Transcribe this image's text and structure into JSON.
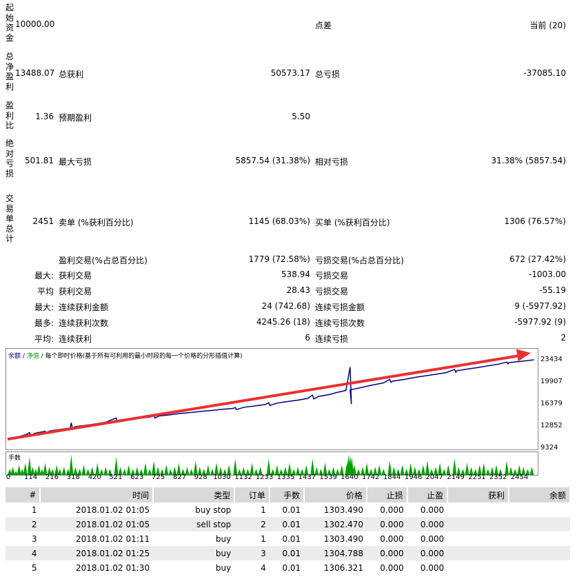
{
  "summary": {
    "initial_deposit_label": "起始资金",
    "initial_deposit_value": "10000.00",
    "spread_label": "点差",
    "spread_value": "当前 (20)",
    "net_profit_label": "总净盈利",
    "net_profit_value": "13488.07",
    "gross_profit_label": "总获利",
    "gross_profit_value": "50573.17",
    "gross_loss_label": "总亏损",
    "gross_loss_value": "-37085.10",
    "profit_factor_label": "盈利比",
    "profit_factor_value": "1.36",
    "expected_payoff_label": "预期盈利",
    "expected_payoff_value": "5.50",
    "absolute_drawdown_label": "绝对亏损",
    "absolute_drawdown_value": "501.81",
    "max_drawdown_label": "最大亏损",
    "max_drawdown_value": "5857.54 (31.38%)",
    "relative_drawdown_label": "相对亏损",
    "relative_drawdown_value": "31.38% (5857.54)",
    "total_trades_label": "交易单总计",
    "total_trades_value": "2451",
    "short_label": "卖单 (%获利百分比)",
    "short_value": "1145 (68.03%)",
    "long_label": "买单 (%获利百分比)",
    "long_value": "1306 (76.57%)",
    "profit_trades_label": "盈利交易(%占总百分比)",
    "profit_trades_value": "1779 (72.58%)",
    "loss_trades_label": "亏损交易(%占总百分比)",
    "loss_trades_value": "672 (27.42%)",
    "largest_prefix": "最大:",
    "largest_profit_label": "获利交易",
    "largest_profit_value": "538.94",
    "largest_loss_label": "亏损交易",
    "largest_loss_value": "-1003.00",
    "average_prefix": "平均",
    "average_profit_label": "获利交易",
    "average_profit_value": "28.43",
    "average_loss_label": "亏损交易",
    "average_loss_value": "-55.19",
    "max_consec_prefix": "最大:",
    "max_consec_wins_label": "连续获利金额",
    "max_consec_wins_value": "24 (742.68)",
    "max_consec_losses_label": "连续亏损金额",
    "max_consec_losses_value": "9 (-5977.92)",
    "maximal_prefix": "最多:",
    "maximal_wins_label": "连续获利次数",
    "maximal_wins_value": "4245.26 (18)",
    "maximal_losses_label": "连续亏损次数",
    "maximal_losses_value": "-5977.92 (9)",
    "avg_consec_prefix": "平均:",
    "avg_consec_wins_label": "连续获利",
    "avg_consec_wins_value": "6",
    "avg_consec_losses_label": "连续亏损",
    "avg_consec_losses_value": "2"
  },
  "chart_data": {
    "type": "line",
    "legend_balance": "余额",
    "legend_sep1": " / ",
    "legend_equity": "净值",
    "legend_sep2": " / ",
    "legend_desc": "每个即时价格(基于所有可利用的最小时段的每一个价格的分形插值计算)",
    "volume_label": "手数",
    "yticks": [
      "23434",
      "19907",
      "16379",
      "12852",
      "9324"
    ],
    "ylim": [
      9324,
      23434
    ],
    "xticks": [
      "0",
      "114",
      "216",
      "318",
      "420",
      "521",
      "623",
      "725",
      "827",
      "928",
      "1030",
      "1132",
      "1233",
      "1335",
      "1437",
      "1539",
      "1640",
      "1742",
      "1844",
      "1946",
      "2047",
      "2149",
      "2251",
      "2352",
      "2454"
    ],
    "xlim": [
      0,
      2525
    ],
    "balance": [
      [
        0,
        10000
      ],
      [
        60,
        10400
      ],
      [
        90,
        10700
      ],
      [
        130,
        10900
      ],
      [
        160,
        11100
      ],
      [
        200,
        11300
      ],
      [
        260,
        11600
      ],
      [
        300,
        11800
      ],
      [
        320,
        12000
      ],
      [
        380,
        12300
      ],
      [
        420,
        12500
      ],
      [
        470,
        12800
      ],
      [
        520,
        13000
      ],
      [
        560,
        13200
      ],
      [
        620,
        13450
      ],
      [
        680,
        13650
      ],
      [
        725,
        13850
      ],
      [
        780,
        14050
      ],
      [
        827,
        14300
      ],
      [
        880,
        14450
      ],
      [
        928,
        14650
      ],
      [
        980,
        14800
      ],
      [
        1030,
        15000
      ],
      [
        1080,
        15150
      ],
      [
        1132,
        15350
      ],
      [
        1180,
        15550
      ],
      [
        1233,
        15800
      ],
      [
        1290,
        16050
      ],
      [
        1335,
        16300
      ],
      [
        1390,
        16550
      ],
      [
        1437,
        16850
      ],
      [
        1490,
        17200
      ],
      [
        1539,
        17500
      ],
      [
        1580,
        17900
      ],
      [
        1620,
        18200
      ],
      [
        1640,
        18300
      ],
      [
        1680,
        18600
      ],
      [
        1742,
        19100
      ],
      [
        1800,
        19500
      ],
      [
        1844,
        19800
      ],
      [
        1900,
        20100
      ],
      [
        1946,
        20400
      ],
      [
        2000,
        20700
      ],
      [
        2047,
        20950
      ],
      [
        2100,
        21250
      ],
      [
        2149,
        21550
      ],
      [
        2200,
        21850
      ],
      [
        2251,
        22100
      ],
      [
        2300,
        22400
      ],
      [
        2352,
        22700
      ],
      [
        2400,
        22950
      ],
      [
        2454,
        23150
      ],
      [
        2520,
        23434
      ]
    ],
    "equity_spikes": [
      [
        105,
        10550,
        11000
      ],
      [
        180,
        10900,
        11250
      ],
      [
        305,
        11600,
        12700
      ],
      [
        520,
        12750,
        13500
      ],
      [
        700,
        13500,
        13850
      ],
      [
        1090,
        14950,
        15300
      ],
      [
        1250,
        15650,
        16100
      ],
      [
        1460,
        16750,
        17400
      ],
      [
        1640,
        15900,
        22200
      ],
      [
        1830,
        19600,
        20100
      ],
      [
        2140,
        21300,
        21800
      ],
      [
        2390,
        22750,
        23050
      ]
    ],
    "trend_arrow": {
      "from": [
        0,
        9900
      ],
      "to": [
        2525,
        24600
      ],
      "color": "#e8312f"
    },
    "colors": {
      "balance": "#000080",
      "equity": "#00a000",
      "volume": "#00a000"
    },
    "volume_bars": [
      [
        10,
        0.3
      ],
      [
        25,
        0.4
      ],
      [
        40,
        0.2
      ],
      [
        55,
        0.5
      ],
      [
        70,
        0.3
      ],
      [
        85,
        0.6
      ],
      [
        105,
        0.9
      ],
      [
        120,
        0.4
      ],
      [
        135,
        0.3
      ],
      [
        150,
        0.5
      ],
      [
        165,
        0.3
      ],
      [
        180,
        0.6
      ],
      [
        200,
        0.4
      ],
      [
        215,
        0.3
      ],
      [
        235,
        0.5
      ],
      [
        250,
        0.3
      ],
      [
        270,
        0.4
      ],
      [
        290,
        0.3
      ],
      [
        305,
        1.0
      ],
      [
        325,
        0.4
      ],
      [
        345,
        0.3
      ],
      [
        365,
        0.5
      ],
      [
        385,
        0.3
      ],
      [
        405,
        0.4
      ],
      [
        430,
        0.6
      ],
      [
        450,
        0.3
      ],
      [
        470,
        0.4
      ],
      [
        490,
        0.3
      ],
      [
        520,
        0.9
      ],
      [
        540,
        0.4
      ],
      [
        560,
        0.3
      ],
      [
        580,
        0.5
      ],
      [
        600,
        0.3
      ],
      [
        620,
        0.4
      ],
      [
        640,
        0.3
      ],
      [
        660,
        0.6
      ],
      [
        680,
        0.3
      ],
      [
        700,
        0.7
      ],
      [
        720,
        0.4
      ],
      [
        740,
        0.3
      ],
      [
        760,
        0.5
      ],
      [
        780,
        0.3
      ],
      [
        800,
        0.4
      ],
      [
        820,
        0.6
      ],
      [
        840,
        0.3
      ],
      [
        860,
        0.4
      ],
      [
        880,
        0.3
      ],
      [
        900,
        0.7
      ],
      [
        920,
        0.4
      ],
      [
        940,
        0.3
      ],
      [
        960,
        0.5
      ],
      [
        980,
        0.3
      ],
      [
        1000,
        0.6
      ],
      [
        1020,
        0.4
      ],
      [
        1040,
        0.3
      ],
      [
        1060,
        0.5
      ],
      [
        1090,
        0.8
      ],
      [
        1110,
        0.3
      ],
      [
        1130,
        0.4
      ],
      [
        1150,
        0.3
      ],
      [
        1170,
        0.6
      ],
      [
        1190,
        0.3
      ],
      [
        1210,
        0.4
      ],
      [
        1250,
        0.8
      ],
      [
        1270,
        0.3
      ],
      [
        1290,
        0.5
      ],
      [
        1310,
        0.3
      ],
      [
        1330,
        0.4
      ],
      [
        1350,
        0.6
      ],
      [
        1370,
        0.3
      ],
      [
        1390,
        0.4
      ],
      [
        1410,
        0.3
      ],
      [
        1430,
        0.5
      ],
      [
        1460,
        0.8
      ],
      [
        1480,
        0.4
      ],
      [
        1500,
        0.3
      ],
      [
        1520,
        0.6
      ],
      [
        1540,
        0.3
      ],
      [
        1560,
        0.4
      ],
      [
        1580,
        0.3
      ],
      [
        1600,
        0.5
      ],
      [
        1625,
        0.6
      ],
      [
        1632,
        1.0
      ],
      [
        1640,
        1.0
      ],
      [
        1648,
        0.9
      ],
      [
        1660,
        0.5
      ],
      [
        1680,
        0.3
      ],
      [
        1700,
        0.4
      ],
      [
        1720,
        0.6
      ],
      [
        1740,
        0.3
      ],
      [
        1760,
        0.4
      ],
      [
        1780,
        0.5
      ],
      [
        1800,
        0.3
      ],
      [
        1830,
        0.7
      ],
      [
        1850,
        0.4
      ],
      [
        1870,
        0.3
      ],
      [
        1890,
        0.5
      ],
      [
        1910,
        0.3
      ],
      [
        1930,
        0.6
      ],
      [
        1950,
        0.4
      ],
      [
        1970,
        0.3
      ],
      [
        1990,
        0.5
      ],
      [
        2010,
        0.7
      ],
      [
        2030,
        0.3
      ],
      [
        2050,
        0.4
      ],
      [
        2070,
        0.6
      ],
      [
        2090,
        0.3
      ],
      [
        2110,
        0.5
      ],
      [
        2140,
        0.8
      ],
      [
        2160,
        0.4
      ],
      [
        2180,
        0.3
      ],
      [
        2200,
        0.6
      ],
      [
        2220,
        0.4
      ],
      [
        2240,
        0.3
      ],
      [
        2260,
        0.5
      ],
      [
        2280,
        0.6
      ],
      [
        2300,
        0.3
      ],
      [
        2320,
        0.4
      ],
      [
        2340,
        0.5
      ],
      [
        2360,
        0.3
      ],
      [
        2390,
        0.7
      ],
      [
        2410,
        0.4
      ],
      [
        2430,
        0.3
      ],
      [
        2450,
        0.5
      ],
      [
        2470,
        0.4
      ],
      [
        2490,
        0.3
      ],
      [
        2510,
        0.4
      ]
    ]
  },
  "orders": {
    "columns": [
      "#",
      "时间",
      "类型",
      "订单",
      "手数",
      "价格",
      "止损",
      "止盈",
      "获利",
      "余额"
    ],
    "rows": [
      [
        "1",
        "2018.01.02 01:05",
        "buy stop",
        "1",
        "0.01",
        "1303.490",
        "0.000",
        "0.000",
        "",
        ""
      ],
      [
        "2",
        "2018.01.02 01:05",
        "sell stop",
        "2",
        "0.01",
        "1302.470",
        "0.000",
        "0.000",
        "",
        ""
      ],
      [
        "3",
        "2018.01.02 01:11",
        "buy",
        "1",
        "0.01",
        "1303.490",
        "0.000",
        "0.000",
        "",
        ""
      ],
      [
        "4",
        "2018.01.02 01:25",
        "buy",
        "3",
        "0.01",
        "1304.788",
        "0.000",
        "0.000",
        "",
        ""
      ],
      [
        "5",
        "2018.01.02 01:30",
        "buy",
        "4",
        "0.01",
        "1306.321",
        "0.000",
        "0.000",
        "",
        ""
      ]
    ]
  }
}
